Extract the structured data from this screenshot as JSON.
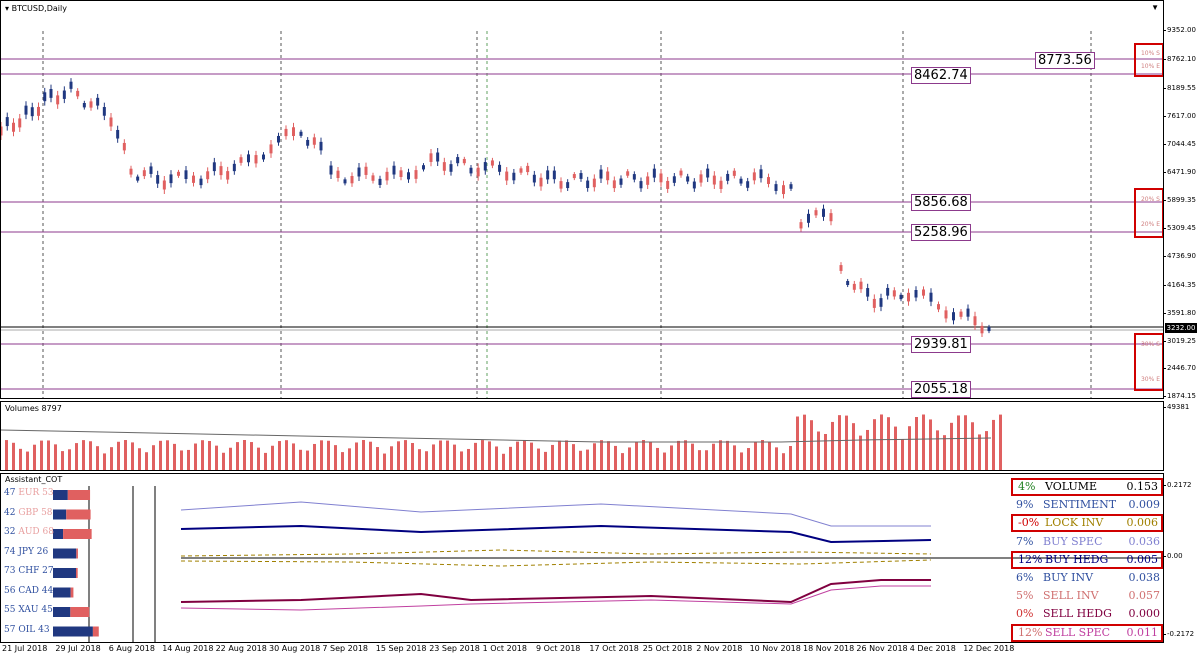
{
  "main_chart": {
    "title": "BTCUSD,Daily",
    "y_ticks": [
      "9352.00",
      "8762.10",
      "8189.55",
      "7617.00",
      "7044.45",
      "6471.90",
      "5899.35",
      "5309.45",
      "4736.90",
      "4164.35",
      "3591.80",
      "3019.25",
      "2446.70",
      "1874.15"
    ],
    "current_price": "3232.00",
    "levels": [
      {
        "value": "8773.56",
        "color": "#8c3a8c"
      },
      {
        "value": "8462.74",
        "color": "#8c3a8c"
      },
      {
        "value": "5856.68",
        "color": "#8c3a8c"
      },
      {
        "value": "5258.96",
        "color": "#8c3a8c"
      },
      {
        "value": "2939.81",
        "color": "#8c3a8c"
      },
      {
        "value": "2055.18",
        "color": "#8c3a8c"
      }
    ],
    "percent_labels": [
      {
        "top": "10% S",
        "bottom": "10% E"
      },
      {
        "top": "20% S",
        "bottom": "20% E"
      },
      {
        "top": "30% S",
        "bottom": "30% E"
      }
    ]
  },
  "volume_chart": {
    "title": "Volumes 8797",
    "y_tick": "49381"
  },
  "cot_panel": {
    "title": "Assistant_COT",
    "y_ticks": [
      "0.2172",
      "0.00",
      "-0.2172"
    ],
    "currencies": [
      {
        "left": "47",
        "name": "EUR",
        "right": "53",
        "color": "#e8a0a0"
      },
      {
        "left": "42",
        "name": "GBP",
        "right": "58",
        "color": "#e8a0a0"
      },
      {
        "left": "32",
        "name": "AUD",
        "right": "68",
        "color": "#e8a0a0"
      },
      {
        "left": "74",
        "name": "JPY",
        "right": "26",
        "color": "#3050a0"
      },
      {
        "left": "73",
        "name": "CHF",
        "right": "27",
        "color": "#3050a0"
      },
      {
        "left": "56",
        "name": "CAD",
        "right": "44",
        "color": "#3050a0"
      },
      {
        "left": "55",
        "name": "XAU",
        "right": "45",
        "color": "#3050a0"
      },
      {
        "left": "57",
        "name": "OIL",
        "right": "43",
        "color": "#3050a0"
      }
    ],
    "legend": [
      {
        "pct": "4%",
        "name": "VOLUME",
        "value": "0.153",
        "pct_color": "#208020",
        "name_color": "#000000",
        "boxed": true
      },
      {
        "pct": "9%",
        "name": "SENTIMENT",
        "value": "0.009",
        "pct_color": "#3050a0",
        "name_color": "#3050a0",
        "boxed": false
      },
      {
        "pct": "-0%",
        "name": "LOCK INV",
        "value": "0.006",
        "pct_color": "#d00000",
        "name_color": "#a08000",
        "boxed": true
      },
      {
        "pct": "7%",
        "name": "BUY SPEC",
        "value": "0.036",
        "pct_color": "#3050a0",
        "name_color": "#8080d0",
        "boxed": false
      },
      {
        "pct": "12%",
        "name": "BUY HEDG",
        "value": "0.005",
        "pct_color": "#000080",
        "name_color": "#000080",
        "boxed": true
      },
      {
        "pct": "6%",
        "name": "BUY INV",
        "value": "0.038",
        "pct_color": "#3050a0",
        "name_color": "#3050a0",
        "boxed": false
      },
      {
        "pct": "5%",
        "name": "SELL INV",
        "value": "0.057",
        "pct_color": "#d07070",
        "name_color": "#d07070",
        "boxed": false
      },
      {
        "pct": "0%",
        "name": "SELL HEDG",
        "value": "0.000",
        "pct_color": "#d03030",
        "name_color": "#800040",
        "boxed": false
      },
      {
        "pct": "12%",
        "name": "SELL SPEC",
        "value": "0.011",
        "pct_color": "#d07070",
        "name_color": "#c040a0",
        "boxed": true
      }
    ]
  },
  "x_axis": [
    "21 Jul 2018",
    "29 Jul 2018",
    "6 Aug 2018",
    "14 Aug 2018",
    "22 Aug 2018",
    "30 Aug 2018",
    "7 Sep 2018",
    "15 Sep 2018",
    "23 Sep 2018",
    "1 Oct 2018",
    "9 Oct 2018",
    "17 Oct 2018",
    "25 Oct 2018",
    "2 Nov 2018",
    "10 Nov 2018",
    "18 Nov 2018",
    "26 Nov 2018",
    "4 Dec 2018",
    "12 Dec 2018"
  ],
  "colors": {
    "bull": "#203880",
    "bear": "#e06060",
    "level": "#8c3a8c",
    "highlight": "#d00000"
  }
}
